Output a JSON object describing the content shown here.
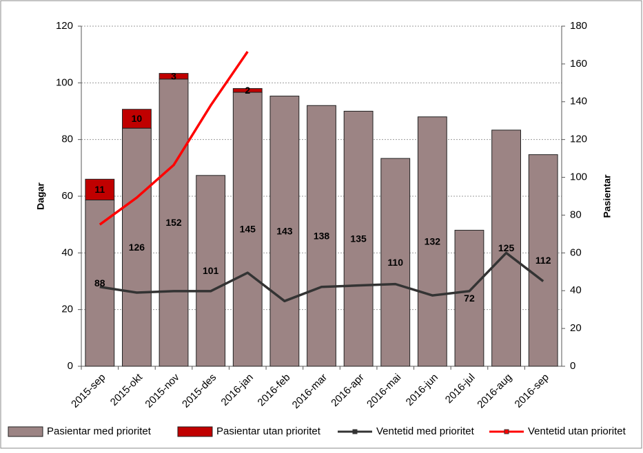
{
  "chart_data": {
    "type": "combo",
    "categories": [
      "2015-sep",
      "2015-okt",
      "2015-nov",
      "2015-des",
      "2016-jan",
      "2016-feb",
      "2016-mar",
      "2016-apr",
      "2016-mai",
      "2016-jun",
      "2016-jul",
      "2016-aug",
      "2016-sep"
    ],
    "y_label": "Dagar",
    "y2_label": "Pasientar",
    "ylim": [
      0,
      120
    ],
    "yticks": [
      0,
      20,
      40,
      60,
      80,
      100,
      120
    ],
    "y2lim": [
      0,
      180
    ],
    "y2ticks": [
      0,
      20,
      40,
      60,
      80,
      100,
      120,
      140,
      160,
      180
    ],
    "grid": true,
    "legend": "bottom",
    "series": [
      {
        "name": "Pasientar med prioritet",
        "type": "bar",
        "axis": "y2",
        "color": "#9c8484",
        "values": [
          88,
          126,
          152,
          101,
          145,
          143,
          138,
          135,
          110,
          132,
          72,
          125,
          112
        ]
      },
      {
        "name": "Pasientar utan prioritet",
        "type": "bar",
        "axis": "y2",
        "color": "#c00000",
        "values": [
          11,
          10,
          3,
          null,
          2,
          null,
          null,
          null,
          null,
          null,
          null,
          null,
          null
        ]
      },
      {
        "name": "Ventetid med prioritet",
        "type": "line",
        "axis": "y",
        "color": "#333333",
        "values": [
          28,
          26,
          26.5,
          26.5,
          33,
          23,
          28,
          28.5,
          29,
          25,
          26.5,
          40,
          30
        ]
      },
      {
        "name": "Ventetid utan prioritet",
        "type": "line",
        "axis": "y",
        "color": "#ff0000",
        "values": [
          50,
          59.5,
          71,
          92,
          111,
          null,
          null,
          null,
          null,
          null,
          null,
          null,
          null
        ]
      }
    ]
  }
}
